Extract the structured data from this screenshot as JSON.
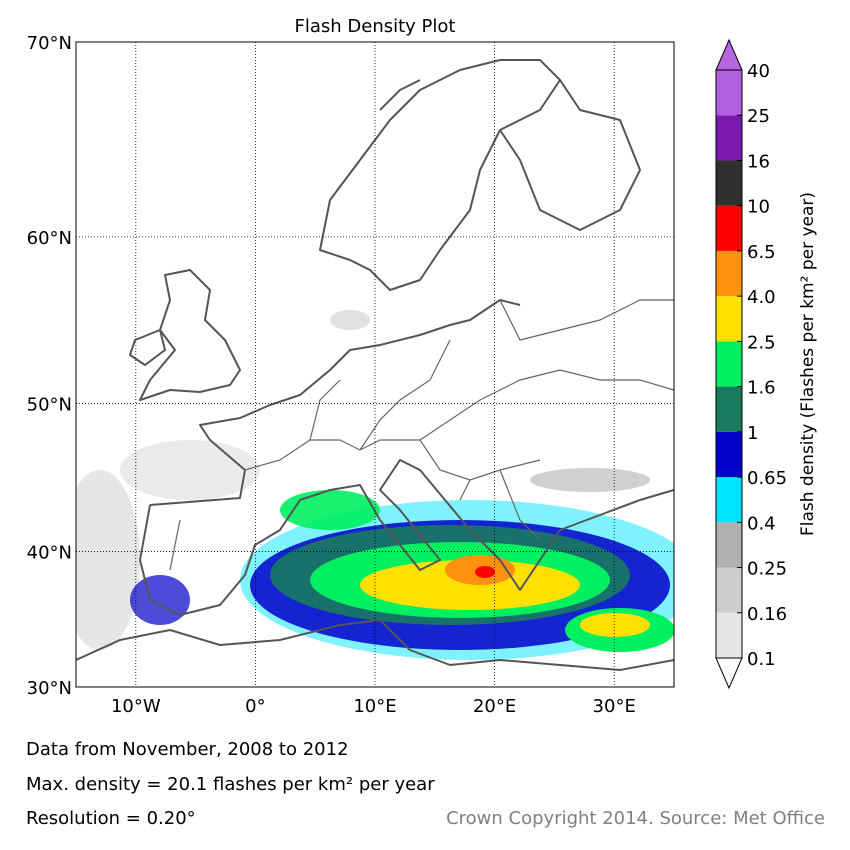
{
  "map": {
    "title": "Flash Density Plot",
    "projection": "miller",
    "xlim": [
      -15,
      35
    ],
    "ylim": [
      30,
      70
    ],
    "yticks": [
      {
        "value": 70,
        "label": "70°N"
      },
      {
        "value": 60,
        "label": "60°N"
      },
      {
        "value": 50,
        "label": "50°N"
      },
      {
        "value": 40,
        "label": "40°N"
      },
      {
        "value": 30,
        "label": "30°N"
      }
    ],
    "xticks": [
      {
        "value": -10,
        "label": "10°W"
      },
      {
        "value": 0,
        "label": "0°"
      },
      {
        "value": 10,
        "label": "10°E"
      },
      {
        "value": 20,
        "label": "20°E"
      },
      {
        "value": 30,
        "label": "30°E"
      }
    ],
    "grid": true
  },
  "colorbar": {
    "label": "Flash density (Flashes per km² per year)",
    "levels": [
      0.1,
      0.16,
      0.25,
      0.4,
      0.65,
      1,
      1.6,
      2.5,
      {
        "value": 4,
        "label": "4.0"
      },
      6.5,
      10,
      16,
      25,
      40
    ],
    "colors": [
      "#e6e6e6",
      "#cdcdcd",
      "#b0b0b0",
      "#00e5ff",
      "#0000c8",
      "#1a7a5e",
      "#00f060",
      "#ffe000",
      "#ff9010",
      "#ff0000",
      "#303030",
      "#7a1ab0",
      "#b060e0"
    ],
    "under": "#ffffff",
    "over": "#b566e0"
  },
  "footer": {
    "period": "Data from November, 2008 to 2012",
    "max_density": "Max. density = 20.1 flashes per km² per year",
    "resolution": "Resolution = 0.20°",
    "copyright": "Crown Copyright 2014. Source: Met Office"
  }
}
